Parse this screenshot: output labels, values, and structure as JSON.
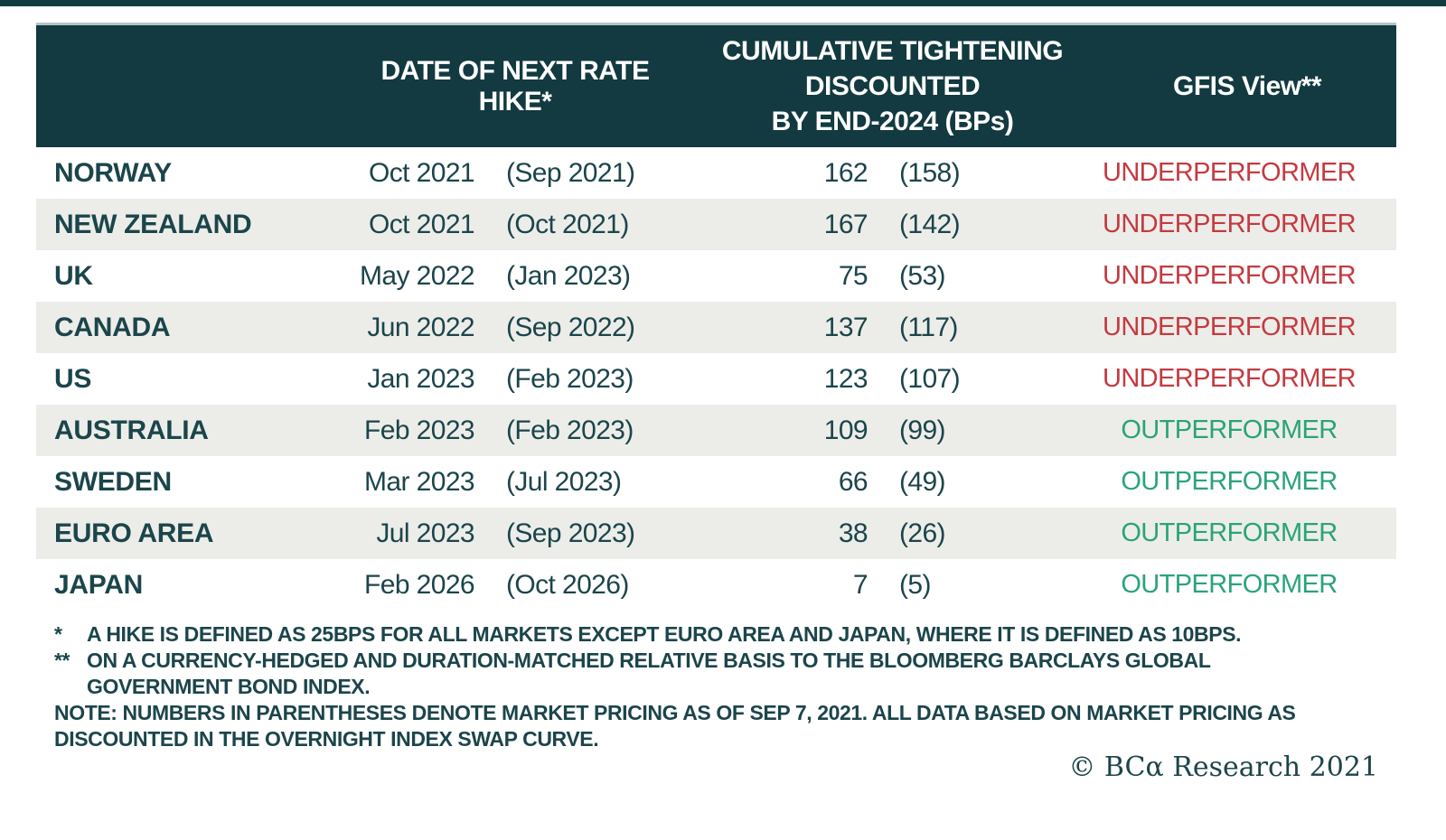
{
  "table": {
    "header": {
      "country_col": "",
      "date_col": "DATE OF NEXT RATE HIKE*",
      "tightening_line1": "CUMULATIVE TIGHTENING",
      "tightening_line2": "DISCOUNTED",
      "tightening_line3": "BY END-2024 (BPs)",
      "view_col": "GFIS View**"
    },
    "rows": [
      {
        "country": "NORWAY",
        "hike_date": "Oct 2021",
        "hike_date_market": "(Sep 2021)",
        "bps": "162",
        "bps_market": "(158)",
        "view": "UNDERPERFORMER",
        "view_type": "under"
      },
      {
        "country": "NEW ZEALAND",
        "hike_date": "Oct 2021",
        "hike_date_market": "(Oct 2021)",
        "bps": "167",
        "bps_market": "(142)",
        "view": "UNDERPERFORMER",
        "view_type": "under"
      },
      {
        "country": "UK",
        "hike_date": "May 2022",
        "hike_date_market": "(Jan 2023)",
        "bps": "75",
        "bps_market": "(53)",
        "view": "UNDERPERFORMER",
        "view_type": "under"
      },
      {
        "country": "CANADA",
        "hike_date": "Jun 2022",
        "hike_date_market": "(Sep 2022)",
        "bps": "137",
        "bps_market": "(117)",
        "view": "UNDERPERFORMER",
        "view_type": "under"
      },
      {
        "country": "US",
        "hike_date": "Jan 2023",
        "hike_date_market": "(Feb 2023)",
        "bps": "123",
        "bps_market": "(107)",
        "view": "UNDERPERFORMER",
        "view_type": "under"
      },
      {
        "country": "AUSTRALIA",
        "hike_date": "Feb 2023",
        "hike_date_market": "(Feb 2023)",
        "bps": "109",
        "bps_market": "(99)",
        "view": "OUTPERFORMER",
        "view_type": "out"
      },
      {
        "country": "SWEDEN",
        "hike_date": "Mar 2023",
        "hike_date_market": "(Jul 2023)",
        "bps": "66",
        "bps_market": "(49)",
        "view": "OUTPERFORMER",
        "view_type": "out"
      },
      {
        "country": "EURO AREA",
        "hike_date": "Jul 2023",
        "hike_date_market": "(Sep 2023)",
        "bps": "38",
        "bps_market": "(26)",
        "view": "OUTPERFORMER",
        "view_type": "out"
      },
      {
        "country": "JAPAN",
        "hike_date": "Feb 2026",
        "hike_date_market": "(Oct 2026)",
        "bps": "7",
        "bps_market": "(5)",
        "view": "OUTPERFORMER",
        "view_type": "out"
      }
    ]
  },
  "footnotes": [
    {
      "marker": "*",
      "text": "A HIKE IS DEFINED AS 25BPS FOR ALL MARKETS EXCEPT EURO AREA AND JAPAN, WHERE IT IS DEFINED AS 10BPS."
    },
    {
      "marker": "**",
      "text": "ON A CURRENCY-HEDGED AND DURATION-MATCHED RELATIVE BASIS TO THE BLOOMBERG BARCLAYS GLOBAL GOVERNMENT BOND INDEX."
    },
    {
      "marker": "",
      "text": "NOTE: NUMBERS IN PARENTHESES DENOTE MARKET PRICING AS OF SEP 7, 2021. ALL DATA BASED ON MARKET PRICING AS DISCOUNTED IN THE OVERNIGHT INDEX SWAP CURVE."
    }
  ],
  "copyright": "© BCα Research 2021",
  "colors": {
    "header_bg": "#123a40",
    "stripe_bg": "#ecede9",
    "teal_text": "#1b454b",
    "underperformer_red": "#c43a40",
    "outperformer_green": "#2aa378"
  },
  "chart_data": {
    "type": "table",
    "columns": [
      "",
      "DATE OF NEXT RATE HIKE*",
      "CUMULATIVE TIGHTENING DISCOUNTED BY END-2024 (BPs)",
      "GFIS View**"
    ],
    "rows": [
      [
        "NORWAY",
        "Oct 2021 (Sep 2021)",
        "162 (158)",
        "UNDERPERFORMER"
      ],
      [
        "NEW ZEALAND",
        "Oct 2021 (Oct 2021)",
        "167 (142)",
        "UNDERPERFORMER"
      ],
      [
        "UK",
        "May 2022 (Jan 2023)",
        "75 (53)",
        "UNDERPERFORMER"
      ],
      [
        "CANADA",
        "Jun 2022 (Sep 2022)",
        "137 (117)",
        "UNDERPERFORMER"
      ],
      [
        "US",
        "Jan 2023 (Feb 2023)",
        "123 (107)",
        "UNDERPERFORMER"
      ],
      [
        "AUSTRALIA",
        "Feb 2023 (Feb 2023)",
        "109 (99)",
        "OUTPERFORMER"
      ],
      [
        "SWEDEN",
        "Mar 2023 (Jul 2023)",
        "66 (49)",
        "OUTPERFORMER"
      ],
      [
        "EURO AREA",
        "Jul 2023 (Sep 2023)",
        "38 (26)",
        "OUTPERFORMER"
      ],
      [
        "JAPAN",
        "Feb 2026 (Oct 2026)",
        "7 (5)",
        "OUTPERFORMER"
      ]
    ],
    "notes": [
      "* A HIKE IS DEFINED AS 25BPS FOR ALL MARKETS EXCEPT EURO AREA AND JAPAN, WHERE IT IS DEFINED AS 10BPS.",
      "** ON A CURRENCY-HEDGED AND DURATION-MATCHED RELATIVE BASIS TO THE BLOOMBERG BARCLAYS GLOBAL GOVERNMENT BOND INDEX.",
      "NOTE: NUMBERS IN PARENTHESES DENOTE MARKET PRICING AS OF SEP 7, 2021. ALL DATA BASED ON MARKET PRICING AS DISCOUNTED IN THE OVERNIGHT INDEX SWAP CURVE."
    ]
  }
}
